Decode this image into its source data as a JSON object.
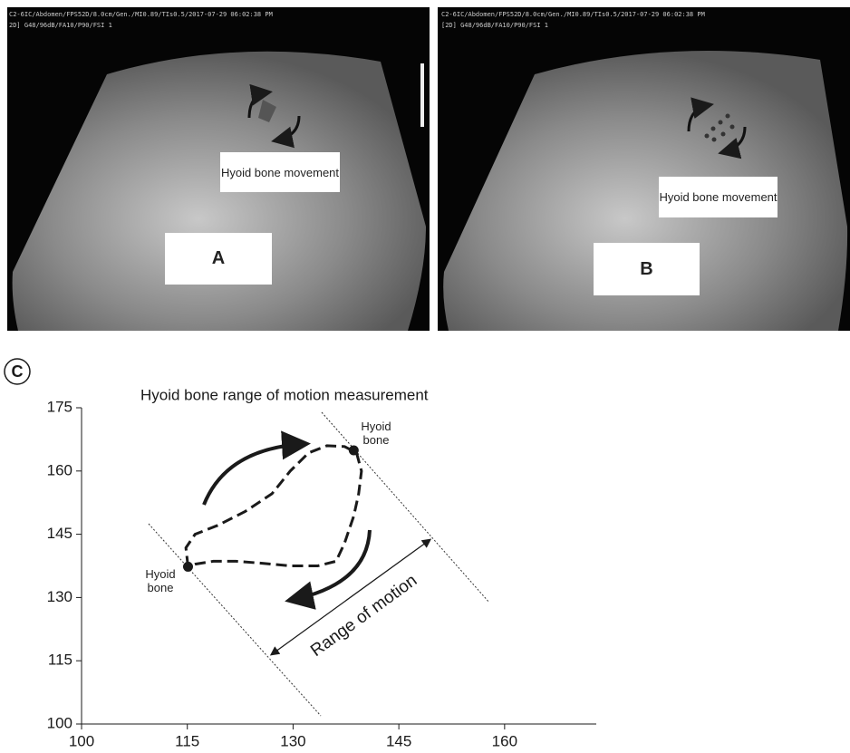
{
  "panels": [
    {
      "header": [
        "C2-6IC/Abdomen/FPS52D/8.0cm/Gen./MI0.89/TIs0.5/2017-07-29 06:02:38 PM",
        "2D] G48/96dB/FA10/P90/FSI 1"
      ],
      "annotation": "Hyoid bone movement",
      "label": "A"
    },
    {
      "header": [
        "C2-6IC/Abdomen/FPS52D/8.0cm/Gen./MI0.89/TIs0.5/2017-07-29 06:02:38 PM",
        "[2D] G48/96dB/FA10/P90/FSI 1"
      ],
      "annotation": "Hyoid bone movement",
      "label": "B"
    }
  ],
  "chart_data": {
    "type": "line",
    "panel_label": "C",
    "title": "Hyoid bone range of motion measurement",
    "x": [
      115.1,
      114.8,
      116.1,
      119.3,
      123.2,
      127.0,
      129.6,
      132.2,
      134.8,
      137.3,
      139.0,
      139.7,
      139.3,
      138.6,
      137.3,
      136.1,
      133.5,
      129.6,
      125.8,
      121.9,
      118.7,
      116.1,
      115.1
    ],
    "y": [
      137.3,
      141.8,
      145.0,
      147.1,
      150.4,
      154.6,
      160.0,
      164.3,
      166.0,
      165.8,
      164.3,
      160.0,
      154.6,
      149.3,
      142.9,
      138.6,
      137.5,
      137.5,
      138.1,
      138.6,
      138.6,
      137.9,
      137.3
    ],
    "points": {
      "x": [
        115.1,
        138.6
      ],
      "y": [
        137.3,
        164.9
      ]
    },
    "color": "#1a1a1a",
    "xlim": [
      100,
      173
    ],
    "ylim": [
      100,
      175
    ],
    "xticks": [
      100,
      115,
      130,
      145,
      160
    ],
    "yticks": [
      100,
      115,
      130,
      145,
      160,
      175
    ],
    "annotations": {
      "point_label_1": "Hyoid bone",
      "point_label_2": "Hyoid bone",
      "range": "Range of motion"
    }
  }
}
